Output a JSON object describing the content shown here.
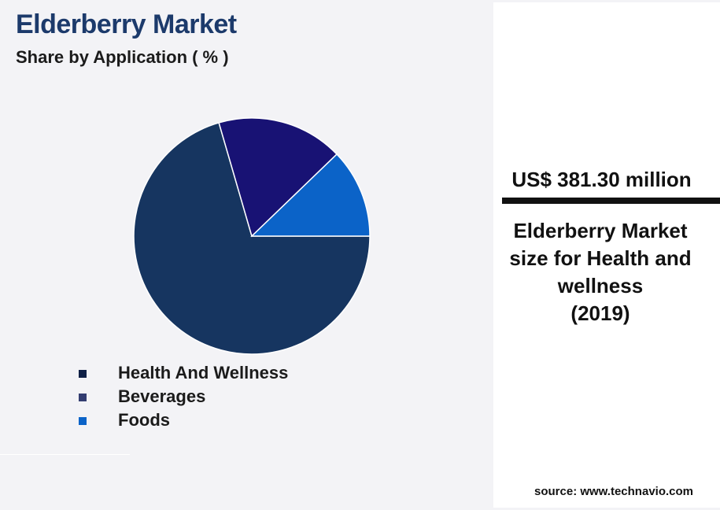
{
  "header": {
    "title": "Elderberry Market",
    "subtitle": "Share by Application ( % )"
  },
  "chart_data": {
    "type": "pie",
    "title": "Elderberry Market",
    "subtitle": "Share by Application ( % )",
    "categories": [
      "Health And Wellness",
      "Beverages",
      "Foods"
    ],
    "values": [
      70.5,
      17.3,
      12.2
    ],
    "colors": [
      "#163560",
      "#181274",
      "#0b63c8"
    ],
    "legend_colors": [
      "#0f2046",
      "#333d71",
      "#0b63c8"
    ],
    "legend": "bottom-left"
  },
  "stat_panel": {
    "value": "US$ 381.30 million",
    "description_lines": [
      "Elderberry Market",
      "size for Health and",
      "wellness",
      "(2019)"
    ],
    "source": "source: www.technavio.com"
  }
}
